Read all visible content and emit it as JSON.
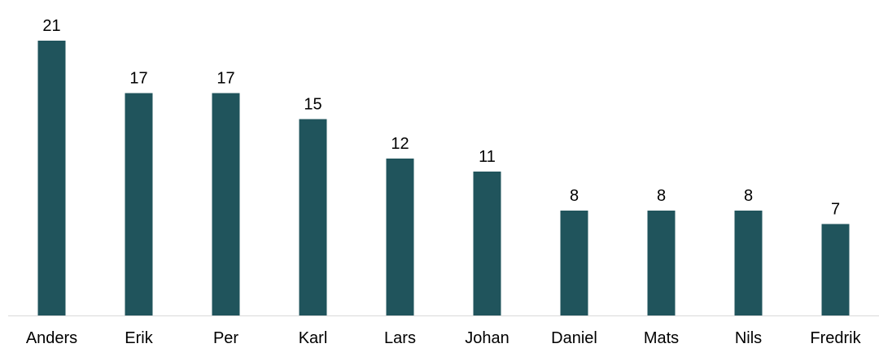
{
  "chart_data": {
    "type": "bar",
    "categories": [
      "Anders",
      "Erik",
      "Per",
      "Karl",
      "Lars",
      "Johan",
      "Daniel",
      "Mats",
      "Nils",
      "Fredrik"
    ],
    "values": [
      21,
      17,
      17,
      15,
      12,
      11,
      8,
      8,
      8,
      7
    ],
    "title": "",
    "xlabel": "",
    "ylabel": "",
    "ylim": [
      0,
      21
    ],
    "grid": false,
    "legend": "none",
    "data_labels": true,
    "colors": {
      "bar": "#20545c",
      "axis": "#d9d9d9"
    }
  }
}
